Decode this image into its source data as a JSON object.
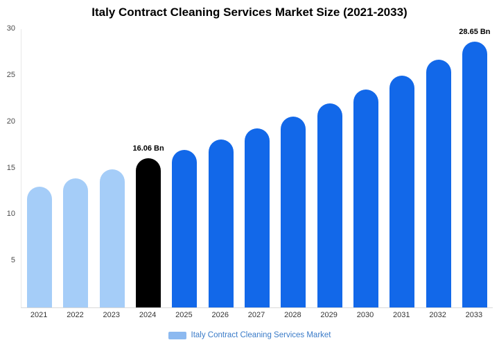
{
  "title": "Italy Contract Cleaning Services Market Size (2021-2033)",
  "legend": {
    "label": "Italy Contract Cleaning Services Market",
    "marker_color": "#8CB9F0",
    "text_color": "#3A7BC8"
  },
  "chart_data": {
    "type": "bar",
    "title": "Italy Contract Cleaning Services Market Size (2021-2033)",
    "categories": [
      "2021",
      "2022",
      "2023",
      "2024",
      "2025",
      "2026",
      "2027",
      "2028",
      "2029",
      "2030",
      "2031",
      "2032",
      "2033"
    ],
    "values": [
      13.0,
      13.9,
      14.9,
      16.06,
      17.0,
      18.1,
      19.3,
      20.6,
      22.0,
      23.5,
      25.0,
      26.7,
      28.65
    ],
    "bar_colors": [
      "#A5CDF8",
      "#A5CDF8",
      "#A5CDF8",
      "#000000",
      "#1268E9",
      "#1268E9",
      "#1268E9",
      "#1268E9",
      "#1268E9",
      "#1268E9",
      "#1268E9",
      "#1268E9",
      "#1268E9"
    ],
    "annotations": [
      {
        "index": 3,
        "text": "16.06 Bn"
      },
      {
        "index": 12,
        "text": "28.65 Bn"
      }
    ],
    "ylim": [
      0,
      30
    ],
    "yticks": [
      5,
      10,
      15,
      20,
      25,
      30
    ],
    "xlabel": "",
    "ylabel": "",
    "grid": false,
    "legend_position": "bottom",
    "unit": "Bn"
  }
}
